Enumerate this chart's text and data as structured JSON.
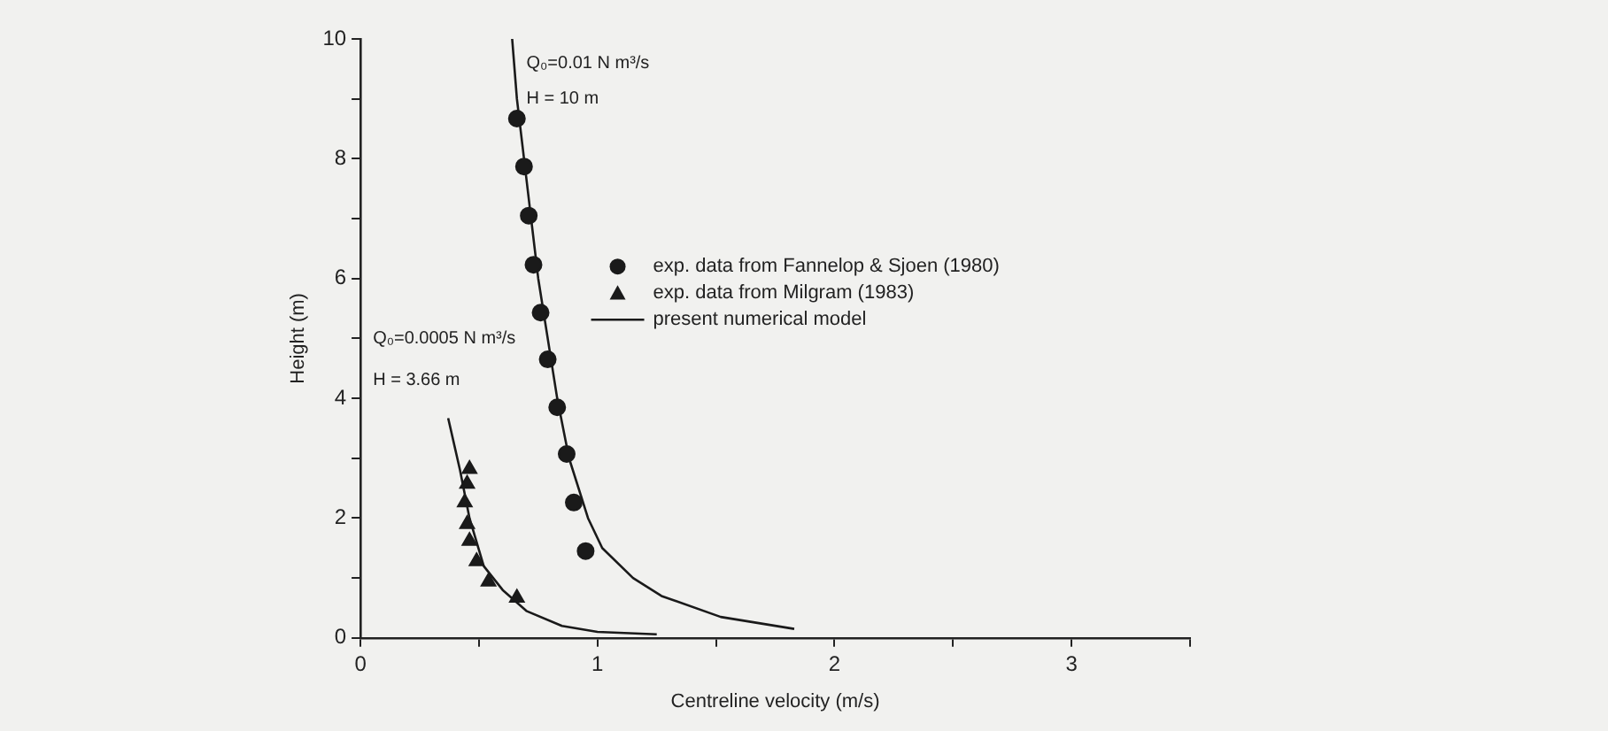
{
  "chart_data": {
    "type": "scatter",
    "xlabel": "Centreline velocity (m/s)",
    "ylabel": "Height (m)",
    "xlim": [
      0,
      3.5
    ],
    "ylim": [
      0,
      10
    ],
    "xticks": [
      0,
      {
        "value": 0.5,
        "label": null
      },
      1,
      {
        "value": 1.5,
        "label": null
      },
      2,
      {
        "value": 2.5,
        "label": null
      },
      3,
      {
        "value": 3.5,
        "label": null
      }
    ],
    "yticks": [
      0,
      {
        "value": 1,
        "label": null
      },
      2,
      {
        "value": 3,
        "label": null
      },
      4,
      {
        "value": 5,
        "label": null
      },
      6,
      {
        "value": 7,
        "label": null
      },
      8,
      {
        "value": 9,
        "label": null
      },
      10
    ],
    "grid": false,
    "legend": "right",
    "line_style": "solid",
    "series": [
      {
        "name": "exp. data from Fannelop & Sjoen (1980)",
        "type": "scatter",
        "marker": "circle",
        "color": "#1a1a1a",
        "x": [
          0.66,
          0.69,
          0.71,
          0.73,
          0.76,
          0.79,
          0.83,
          0.87,
          0.9,
          0.95
        ],
        "values": [
          8.67,
          7.87,
          7.05,
          6.23,
          5.43,
          4.65,
          3.85,
          3.07,
          2.26,
          1.45
        ]
      },
      {
        "name": "exp. data from Milgram (1983)",
        "type": "scatter",
        "marker": "triangle",
        "color": "#1a1a1a",
        "x": [
          0.46,
          0.45,
          0.44,
          0.45,
          0.46,
          0.49,
          0.54,
          0.66
        ],
        "values": [
          2.82,
          2.57,
          2.26,
          1.9,
          1.62,
          1.28,
          0.94,
          0.67
        ]
      },
      {
        "name": "present numerical model",
        "type": "line",
        "marker": "none",
        "color": "#1a1a1a",
        "x": [
          0.64,
          0.66,
          0.69,
          0.72,
          0.75,
          0.79,
          0.83,
          0.88,
          0.96,
          1.02,
          1.15,
          1.27,
          1.52,
          1.83,
          null,
          0.37,
          0.42,
          0.46,
          0.52,
          0.6,
          0.7,
          0.85,
          1.0,
          1.25
        ],
        "values": [
          10,
          9,
          8,
          7,
          6,
          5,
          4,
          3,
          2,
          1.5,
          1.0,
          0.7,
          0.35,
          0.15,
          null,
          3.67,
          2.8,
          2.0,
          1.2,
          0.8,
          0.45,
          0.2,
          0.1,
          0.06
        ]
      }
    ],
    "annotations": [
      "Q₀=0.01 N m³/s",
      "H = 10 m",
      "Q₀=0.0005 N m³/s",
      "H = 3.66 m"
    ]
  }
}
